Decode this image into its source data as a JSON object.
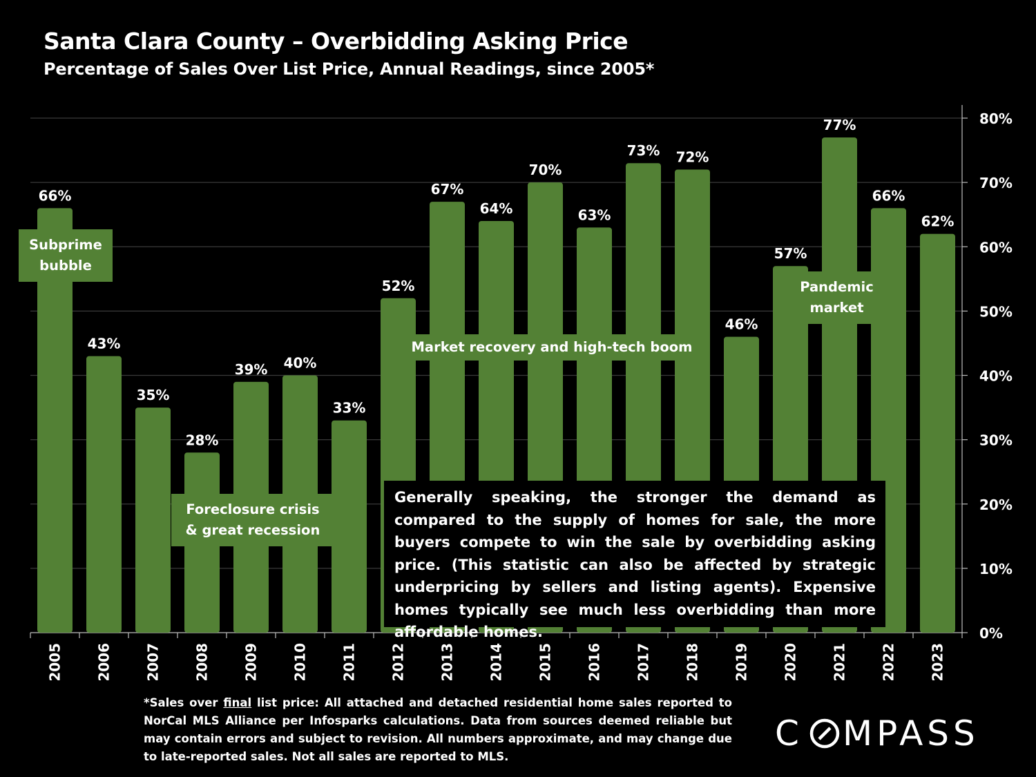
{
  "title": "Santa Clara County – Overbidding Asking Price",
  "subtitle": "Percentage of Sales Over List Price, Annual Readings, since 2005*",
  "chart_data": {
    "type": "bar",
    "categories": [
      "2005",
      "2006",
      "2007",
      "2008",
      "2009",
      "2010",
      "2011",
      "2012",
      "2013",
      "2014",
      "2015",
      "2016",
      "2017",
      "2018",
      "2019",
      "2020",
      "2021",
      "2022",
      "2023"
    ],
    "values": [
      66,
      43,
      35,
      28,
      39,
      40,
      33,
      52,
      67,
      64,
      70,
      63,
      73,
      72,
      46,
      57,
      77,
      66,
      62
    ],
    "data_labels": [
      "66%",
      "43%",
      "35%",
      "28%",
      "39%",
      "40%",
      "33%",
      "52%",
      "67%",
      "64%",
      "70%",
      "63%",
      "73%",
      "72%",
      "46%",
      "57%",
      "77%",
      "66%",
      "62%"
    ],
    "ylim": [
      0,
      80
    ],
    "yticks": [
      0,
      10,
      20,
      30,
      40,
      50,
      60,
      70,
      80
    ],
    "ytick_labels": [
      "0%",
      "10%",
      "20%",
      "30%",
      "40%",
      "50%",
      "60%",
      "70%",
      "80%"
    ],
    "y_axis_side": "right",
    "grid": true,
    "bar_color": "#538135",
    "annotations": {
      "subprime": [
        "Subprime",
        "bubble"
      ],
      "foreclosure": [
        "Foreclosure crisis",
        "& great recession"
      ],
      "recovery": "Market recovery and high-tech boom",
      "pandemic": [
        "Pandemic",
        "market"
      ]
    }
  },
  "note": "Generally speaking, the stronger the demand as compared to the supply of homes for sale, the more buyers compete to win the sale by overbidding asking price. (This statistic can also be affected by strategic underpricing by sellers and listing agents). Expensive homes typically see much less overbidding than more affordable homes.",
  "footnote": {
    "before": "*Sales over ",
    "emph": "final",
    "after": " list price: All attached and detached residential home sales reported to NorCal MLS Alliance per Infosparks calculations. Data from sources deemed reliable but may contain errors and subject to revision. All numbers approximate, and may change due to late-reported sales. Not all sales are reported to MLS."
  },
  "logo": "COMPASS"
}
